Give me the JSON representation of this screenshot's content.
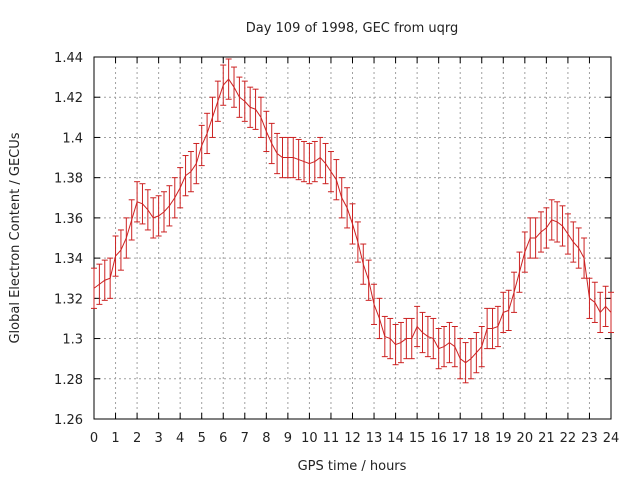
{
  "chart_data": {
    "type": "line",
    "subtype": "errorbar",
    "title": "Day 109 of 1998, GEC from uqrg",
    "xlabel": "GPS time / hours",
    "ylabel": "Global Electron Content / GECUs",
    "xlim": [
      0,
      24
    ],
    "ylim": [
      1.26,
      1.44
    ],
    "xticks": [
      "0",
      "1",
      "2",
      "3",
      "4",
      "5",
      "6",
      "7",
      "8",
      "9",
      "10",
      "11",
      "12",
      "13",
      "14",
      "15",
      "16",
      "17",
      "18",
      "19",
      "20",
      "21",
      "22",
      "23",
      "24"
    ],
    "yticks": [
      "1.26",
      "1.28",
      "1.3",
      "1.32",
      "1.34",
      "1.36",
      "1.38",
      "1.4",
      "1.42",
      "1.44"
    ],
    "grid": true,
    "error_bar": 0.01,
    "color": "#cc2222",
    "series": [
      {
        "name": "GEC",
        "x": [
          0.0,
          0.25,
          0.5,
          0.75,
          1.0,
          1.25,
          1.5,
          1.75,
          2.0,
          2.25,
          2.5,
          2.75,
          3.0,
          3.25,
          3.5,
          3.75,
          4.0,
          4.25,
          4.5,
          4.75,
          5.0,
          5.25,
          5.5,
          5.75,
          6.0,
          6.25,
          6.5,
          6.75,
          7.0,
          7.25,
          7.5,
          7.75,
          8.0,
          8.25,
          8.5,
          8.75,
          9.0,
          9.25,
          9.5,
          9.75,
          10.0,
          10.25,
          10.5,
          10.75,
          11.0,
          11.25,
          11.5,
          11.75,
          12.0,
          12.25,
          12.5,
          12.75,
          13.0,
          13.25,
          13.5,
          13.75,
          14.0,
          14.25,
          14.5,
          14.75,
          15.0,
          15.25,
          15.5,
          15.75,
          16.0,
          16.25,
          16.5,
          16.75,
          17.0,
          17.25,
          17.5,
          17.75,
          18.0,
          18.25,
          18.5,
          18.75,
          19.0,
          19.25,
          19.5,
          19.75,
          20.0,
          20.25,
          20.5,
          20.75,
          21.0,
          21.25,
          21.5,
          21.75,
          22.0,
          22.25,
          22.5,
          22.75,
          23.0,
          23.25,
          23.5,
          23.75,
          24.0
        ],
        "y": [
          1.325,
          1.327,
          1.329,
          1.33,
          1.341,
          1.344,
          1.35,
          1.359,
          1.368,
          1.367,
          1.364,
          1.36,
          1.361,
          1.363,
          1.366,
          1.37,
          1.375,
          1.381,
          1.383,
          1.387,
          1.396,
          1.402,
          1.41,
          1.418,
          1.426,
          1.429,
          1.425,
          1.42,
          1.418,
          1.415,
          1.414,
          1.41,
          1.403,
          1.397,
          1.392,
          1.39,
          1.39,
          1.39,
          1.389,
          1.388,
          1.387,
          1.388,
          1.39,
          1.387,
          1.383,
          1.379,
          1.37,
          1.365,
          1.357,
          1.348,
          1.337,
          1.329,
          1.317,
          1.31,
          1.301,
          1.3,
          1.297,
          1.298,
          1.3,
          1.3,
          1.306,
          1.303,
          1.301,
          1.3,
          1.295,
          1.296,
          1.298,
          1.296,
          1.29,
          1.288,
          1.29,
          1.293,
          1.296,
          1.305,
          1.305,
          1.306,
          1.313,
          1.314,
          1.323,
          1.333,
          1.343,
          1.35,
          1.35,
          1.353,
          1.355,
          1.359,
          1.358,
          1.356,
          1.352,
          1.348,
          1.345,
          1.34,
          1.32,
          1.318,
          1.313,
          1.316,
          1.313
        ]
      }
    ]
  }
}
